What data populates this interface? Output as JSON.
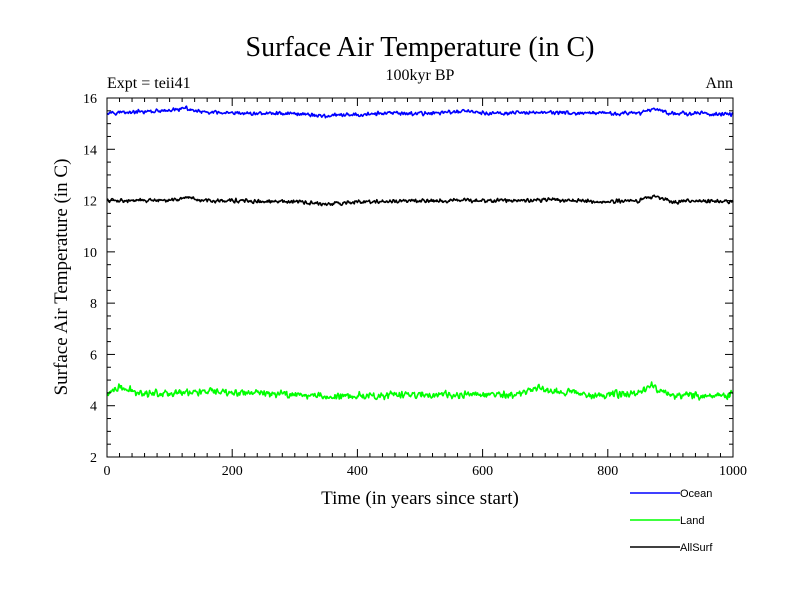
{
  "chart_data": {
    "type": "line",
    "title": "Surface Air Temperature (in C)",
    "subtitle": "100kyr BP",
    "left_note": "Expt = teii41",
    "right_note": "Ann",
    "xlabel": "Time (in years since start)",
    "ylabel": "Surface Air Temperature (in C)",
    "xlim": [
      0,
      1000
    ],
    "ylim": [
      2,
      16
    ],
    "x_ticks": [
      0,
      200,
      400,
      600,
      800,
      1000
    ],
    "y_ticks": [
      2,
      4,
      6,
      8,
      10,
      12,
      14,
      16
    ],
    "grid": false,
    "legend_position": "bottom-right, outside plot",
    "series": [
      {
        "name": "Ocean",
        "color": "#0000ff",
        "x": [
          0,
          50,
          100,
          125,
          150,
          200,
          250,
          300,
          350,
          400,
          450,
          500,
          550,
          575,
          600,
          650,
          700,
          750,
          800,
          850,
          875,
          900,
          950,
          1000
        ],
        "values": [
          15.45,
          15.45,
          15.5,
          15.6,
          15.45,
          15.4,
          15.4,
          15.4,
          15.3,
          15.35,
          15.4,
          15.4,
          15.45,
          15.5,
          15.4,
          15.4,
          15.45,
          15.4,
          15.4,
          15.4,
          15.6,
          15.4,
          15.4,
          15.35
        ]
      },
      {
        "name": "Land",
        "color": "#00ff00",
        "x": [
          0,
          20,
          50,
          100,
          150,
          200,
          250,
          300,
          350,
          400,
          450,
          500,
          550,
          600,
          650,
          690,
          700,
          750,
          800,
          850,
          870,
          900,
          950,
          1000
        ],
        "values": [
          4.45,
          4.7,
          4.5,
          4.5,
          4.55,
          4.5,
          4.5,
          4.45,
          4.35,
          4.4,
          4.4,
          4.45,
          4.4,
          4.45,
          4.4,
          4.75,
          4.6,
          4.5,
          4.4,
          4.5,
          4.8,
          4.4,
          4.4,
          4.4
        ]
      },
      {
        "name": "AllSurf",
        "color": "#000000",
        "x": [
          0,
          50,
          100,
          125,
          150,
          200,
          250,
          300,
          350,
          400,
          450,
          500,
          550,
          600,
          650,
          700,
          750,
          800,
          850,
          875,
          900,
          950,
          1000
        ],
        "values": [
          12.0,
          12.0,
          12.0,
          12.1,
          12.0,
          12.0,
          11.95,
          11.95,
          11.85,
          11.95,
          11.95,
          12.0,
          12.0,
          12.0,
          12.0,
          12.05,
          12.0,
          11.95,
          12.0,
          12.2,
          11.95,
          12.0,
          11.95
        ]
      }
    ]
  }
}
